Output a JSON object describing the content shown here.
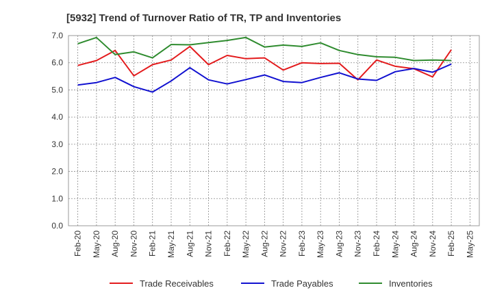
{
  "chart_data": {
    "type": "line",
    "title": "[5932]  Trend of Turnover Ratio of TR, TP and Inventories",
    "xlabel": "",
    "ylabel": "",
    "ylim": [
      0,
      7
    ],
    "yticks": [
      "0.0",
      "1.0",
      "2.0",
      "3.0",
      "4.0",
      "5.0",
      "6.0",
      "7.0"
    ],
    "grid": true,
    "legend_position": "bottom",
    "categories": [
      "Feb-20",
      "May-20",
      "Aug-20",
      "Nov-20",
      "Feb-21",
      "May-21",
      "Aug-21",
      "Nov-21",
      "Feb-22",
      "May-22",
      "Aug-22",
      "Nov-22",
      "Feb-23",
      "May-23",
      "Aug-23",
      "Nov-23",
      "Feb-24",
      "May-24",
      "Aug-24",
      "Nov-24",
      "Feb-25",
      "May-25"
    ],
    "series": [
      {
        "name": "Trade Receivables",
        "color": "#e31a1c",
        "values": [
          5.9,
          6.08,
          6.45,
          5.52,
          5.93,
          6.1,
          6.6,
          5.93,
          6.27,
          6.15,
          6.18,
          5.73,
          6.0,
          5.97,
          5.98,
          5.37,
          6.1,
          5.87,
          5.78,
          5.48,
          6.48,
          null
        ]
      },
      {
        "name": "Trade Payables",
        "color": "#1010d0",
        "values": [
          5.18,
          5.27,
          5.46,
          5.12,
          4.92,
          5.33,
          5.82,
          5.37,
          5.22,
          5.38,
          5.55,
          5.31,
          5.27,
          5.46,
          5.63,
          5.4,
          5.35,
          5.67,
          5.79,
          5.65,
          5.95,
          null
        ]
      },
      {
        "name": "Inventories",
        "color": "#2e8b2e",
        "values": [
          6.7,
          6.93,
          6.3,
          6.4,
          6.18,
          6.67,
          6.66,
          6.74,
          6.82,
          6.93,
          6.58,
          6.65,
          6.6,
          6.73,
          6.45,
          6.3,
          6.22,
          6.2,
          6.08,
          6.1,
          6.08,
          null
        ]
      }
    ]
  }
}
